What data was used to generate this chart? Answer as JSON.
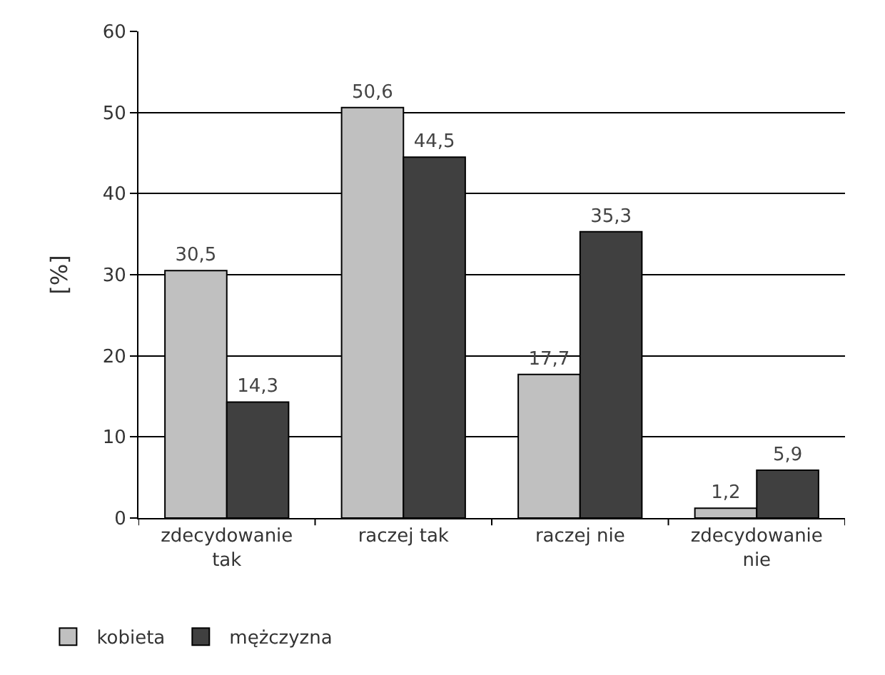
{
  "chart_data": {
    "type": "bar",
    "ylabel": "[%]",
    "categories": [
      "zdecydowanie tak",
      "raczej tak",
      "raczej nie",
      "zdecydowanie nie"
    ],
    "series": [
      {
        "name": "kobieta",
        "color": "#c0c0c0",
        "values": [
          30.5,
          50.6,
          17.7,
          1.2
        ],
        "value_labels": [
          "30,5",
          "50,6",
          "17,7",
          "1,2"
        ]
      },
      {
        "name": "mężczyzna",
        "color": "#404040",
        "values": [
          14.3,
          44.5,
          35.3,
          5.9
        ],
        "value_labels": [
          "14,3",
          "44,5",
          "35,3",
          "5,9"
        ]
      }
    ],
    "ylim": [
      0,
      60
    ],
    "yticks": [
      0,
      10,
      20,
      30,
      40,
      50,
      60
    ],
    "grid": "y",
    "legend": "bottom left"
  }
}
